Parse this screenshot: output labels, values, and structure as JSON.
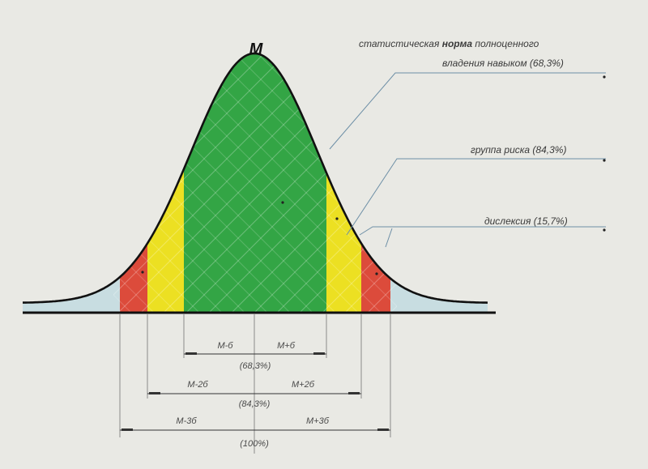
{
  "title": "M",
  "legend": {
    "norm": {
      "prefix": "статистическая ",
      "bold": "норма",
      "suffix": " полноценного",
      "line2": "владения навыком  (68,3%)"
    },
    "risk": "группа риска  (84,3%)",
    "dyslexia": "дислексия  (15,7%)"
  },
  "dims": {
    "s1_left": "М-б",
    "s1_right": "М+б",
    "s1_pct": "(68,3%)",
    "s2_left": "М-2б",
    "s2_right": "М+2б",
    "s2_pct": "(84,3%)",
    "s3_left": "М-3б",
    "s3_right": "М+3б",
    "s3_pct": "(100%)"
  },
  "colors": {
    "tail": "#c8dde1",
    "dyslexia": "#dc4b3b",
    "risk": "#ece022",
    "norm": "#33a545",
    "curve": "#111111"
  }
}
